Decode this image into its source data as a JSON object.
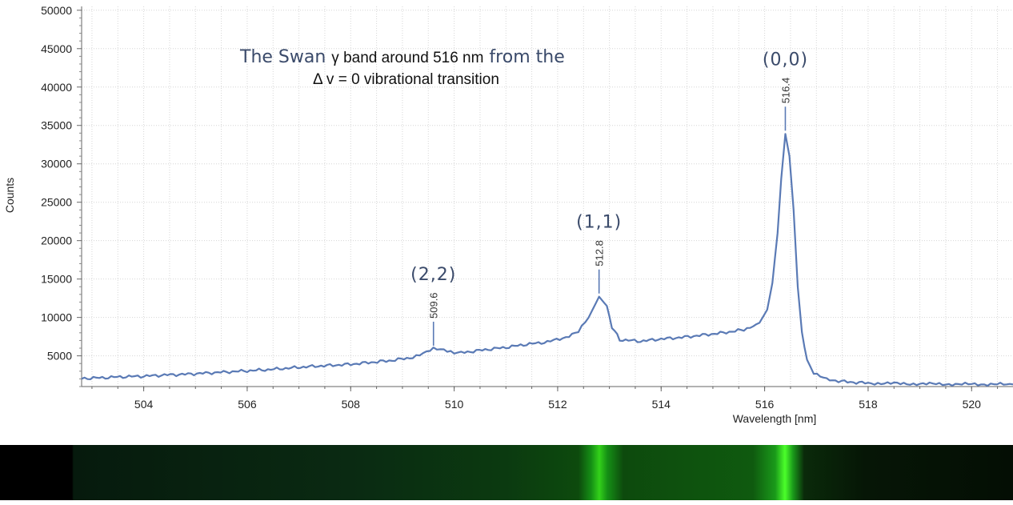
{
  "chart_data": {
    "type": "line",
    "title_line1": "The Swan γ band around 516 nm from the",
    "title_line1_parts": [
      "The Swan ",
      "γ",
      " band around 516 nm",
      " from the"
    ],
    "title_line2": "Δ v = 0 vibrational transition",
    "xlabel": "Wavelength [nm]",
    "ylabel": "Counts",
    "xlim": [
      502.8,
      520.8
    ],
    "ylim": [
      1000,
      50500
    ],
    "x_ticks": [
      504,
      506,
      508,
      510,
      512,
      514,
      516,
      518,
      520
    ],
    "y_ticks": [
      5000,
      10000,
      15000,
      20000,
      25000,
      30000,
      35000,
      40000,
      45000,
      50000
    ],
    "grid": true,
    "series": [
      {
        "color": "#5a7ab5",
        "points": [
          [
            502.8,
            2050
          ],
          [
            503.2,
            2150
          ],
          [
            503.6,
            2280
          ],
          [
            504.0,
            2350
          ],
          [
            504.4,
            2500
          ],
          [
            504.8,
            2600
          ],
          [
            505.2,
            2750
          ],
          [
            505.6,
            2900
          ],
          [
            506.0,
            3050
          ],
          [
            506.4,
            3200
          ],
          [
            506.8,
            3400
          ],
          [
            507.2,
            3600
          ],
          [
            507.6,
            3750
          ],
          [
            508.0,
            3900
          ],
          [
            508.4,
            4150
          ],
          [
            508.8,
            4400
          ],
          [
            509.2,
            4800
          ],
          [
            509.4,
            5300
          ],
          [
            509.6,
            5900
          ],
          [
            509.8,
            5700
          ],
          [
            510.0,
            5300
          ],
          [
            510.2,
            5450
          ],
          [
            510.6,
            5800
          ],
          [
            511.0,
            6100
          ],
          [
            511.4,
            6500
          ],
          [
            511.8,
            6800
          ],
          [
            512.1,
            7300
          ],
          [
            512.4,
            8100
          ],
          [
            512.6,
            10000
          ],
          [
            512.8,
            12700
          ],
          [
            512.95,
            11500
          ],
          [
            513.05,
            8800
          ],
          [
            513.2,
            7100
          ],
          [
            513.6,
            6900
          ],
          [
            514.0,
            7200
          ],
          [
            514.4,
            7400
          ],
          [
            514.8,
            7700
          ],
          [
            515.2,
            8000
          ],
          [
            515.6,
            8400
          ],
          [
            515.9,
            9300
          ],
          [
            516.05,
            11000
          ],
          [
            516.15,
            14500
          ],
          [
            516.25,
            21000
          ],
          [
            516.32,
            28000
          ],
          [
            516.4,
            33900
          ],
          [
            516.48,
            31000
          ],
          [
            516.56,
            24000
          ],
          [
            516.64,
            14000
          ],
          [
            516.72,
            8000
          ],
          [
            516.82,
            4500
          ],
          [
            516.95,
            2800
          ],
          [
            517.2,
            1900
          ],
          [
            517.6,
            1600
          ],
          [
            518.0,
            1450
          ],
          [
            518.5,
            1400
          ],
          [
            519.0,
            1350
          ],
          [
            519.5,
            1320
          ],
          [
            520.0,
            1300
          ],
          [
            520.8,
            1280
          ]
        ]
      }
    ],
    "peaks": [
      {
        "x": 509.6,
        "y": 5900,
        "label": "509.6",
        "band": "(2,2)"
      },
      {
        "x": 512.8,
        "y": 12700,
        "label": "512.8",
        "band": "(1,1)"
      },
      {
        "x": 516.4,
        "y": 33900,
        "label": "516.4",
        "band": "(0,0)"
      }
    ]
  },
  "spectrum_strip": {
    "bands": [
      {
        "x": 512.8,
        "color": "#33d11a"
      },
      {
        "x": 516.4,
        "color": "#4bff2a"
      }
    ],
    "base_color": "#0b3d0b"
  }
}
